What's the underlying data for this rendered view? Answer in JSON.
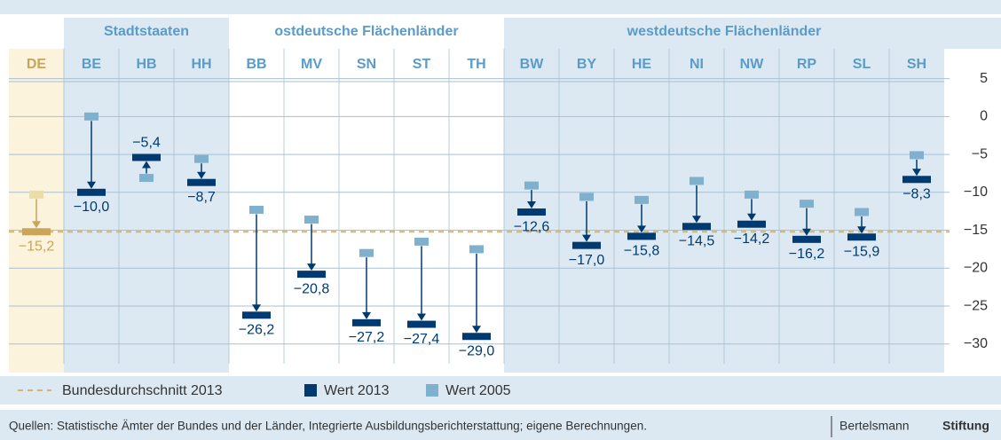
{
  "chart_data": {
    "type": "arrow",
    "group_labels": [
      "Stadtstaaten",
      "ostdeutsche Flächenländer",
      "westdeutsche Flächenländer"
    ],
    "categories": [
      "DE",
      "BE",
      "HB",
      "HH",
      "BB",
      "MV",
      "SN",
      "ST",
      "TH",
      "BW",
      "BY",
      "HE",
      "NI",
      "NW",
      "RP",
      "SL",
      "SH"
    ],
    "series": [
      {
        "name": "Wert 2013",
        "color": "#003a70",
        "values": [
          -15.2,
          -10.0,
          -5.4,
          -8.7,
          -26.2,
          -20.8,
          -27.2,
          -27.4,
          -29.0,
          -12.6,
          -17.0,
          -15.8,
          -14.5,
          -14.2,
          -16.2,
          -15.9,
          -8.3
        ],
        "value_labels": [
          "−15,2",
          "−10,0",
          "−5,4",
          "−8,7",
          "−26,2",
          "−20,8",
          "−27,2",
          "−27,4",
          "−29,0",
          "−12,6",
          "−17,0",
          "−15,8",
          "−14,5",
          "−14,2",
          "−16,2",
          "−15,9",
          "−8,3"
        ]
      },
      {
        "name": "Wert 2005",
        "color": "#7fb1cf",
        "values": [
          -10.3,
          0.0,
          -8.1,
          -5.6,
          -12.3,
          -13.6,
          -18.0,
          -16.5,
          -17.5,
          -9.1,
          -10.6,
          -11.0,
          -8.5,
          -10.3,
          -11.5,
          -12.6,
          -5.1
        ]
      }
    ],
    "reference_line": {
      "name": "Bundesdurchschnitt 2013",
      "value": -15.2,
      "color": "#d4b56a"
    },
    "highlight_color": "#c9a55a",
    "ylim": [
      -32.6,
      4.6
    ],
    "yticks": [
      5,
      0,
      {
        "value": -5,
        "label": "−5"
      },
      {
        "value": -10,
        "label": "−10"
      },
      {
        "value": -15,
        "label": "−15"
      },
      {
        "value": -20,
        "label": "−20"
      },
      {
        "value": -25,
        "label": "−25"
      },
      {
        "value": -30,
        "label": "−30"
      }
    ],
    "grid": true,
    "source": "Quellen: Statistische Ämter der Bundes und der Länder, Integrierte Ausbildungsberichterstattung; eigene Berechnungen.",
    "logo": [
      "Bertelsmann",
      "Stiftung"
    ]
  }
}
